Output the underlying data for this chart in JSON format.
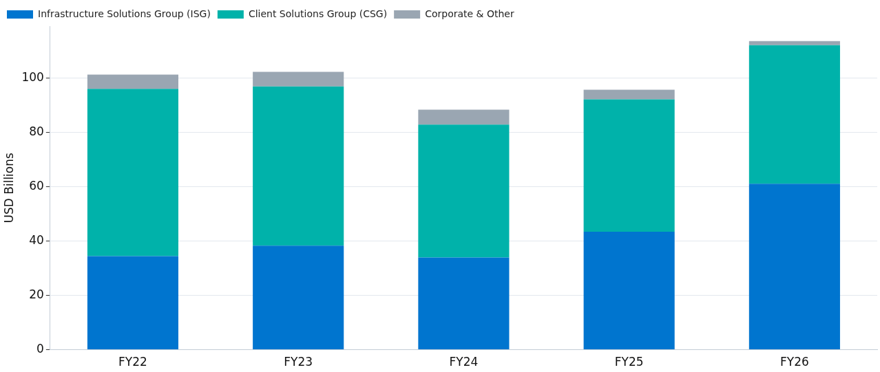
{
  "chart_data": {
    "type": "bar",
    "stacked": true,
    "ylabel": "USD Billions",
    "categories": [
      "FY22",
      "FY23",
      "FY24",
      "FY25",
      "FY26"
    ],
    "series": [
      {
        "name": "Infrastructure Solutions Group (ISG)",
        "color": "#0075cf",
        "values": [
          34.4,
          38.3,
          33.9,
          43.4,
          61.0
        ]
      },
      {
        "name": "Client Solutions Group (CSG)",
        "color": "#00b2aa",
        "values": [
          61.5,
          58.5,
          48.9,
          48.7,
          51.0
        ]
      },
      {
        "name": "Corporate & Other",
        "color": "#9aa6b2",
        "values": [
          5.3,
          5.4,
          5.5,
          3.5,
          1.5
        ]
      }
    ],
    "ylim": [
      0,
      119
    ],
    "yticks": [
      0,
      20,
      40,
      60,
      80,
      100
    ],
    "grid": "y",
    "legend": "top left"
  }
}
